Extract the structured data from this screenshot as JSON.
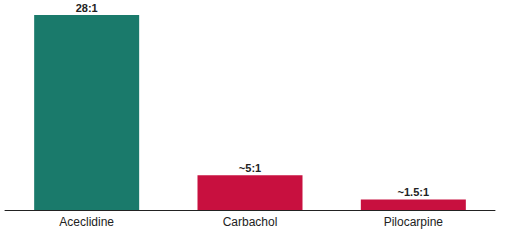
{
  "chart_data": {
    "type": "bar",
    "categories": [
      "Aceclidine",
      "Carbachol",
      "Pilocarpine"
    ],
    "values": [
      28,
      5,
      1.5
    ],
    "value_labels": [
      "28:1",
      "~5:1",
      "~1.5:1"
    ],
    "colors": [
      "#1a7a6b",
      "#c8103f",
      "#c8103f"
    ],
    "ylim": [
      0,
      28
    ],
    "tick_labels": "x",
    "data_labels": true,
    "grid": false
  }
}
